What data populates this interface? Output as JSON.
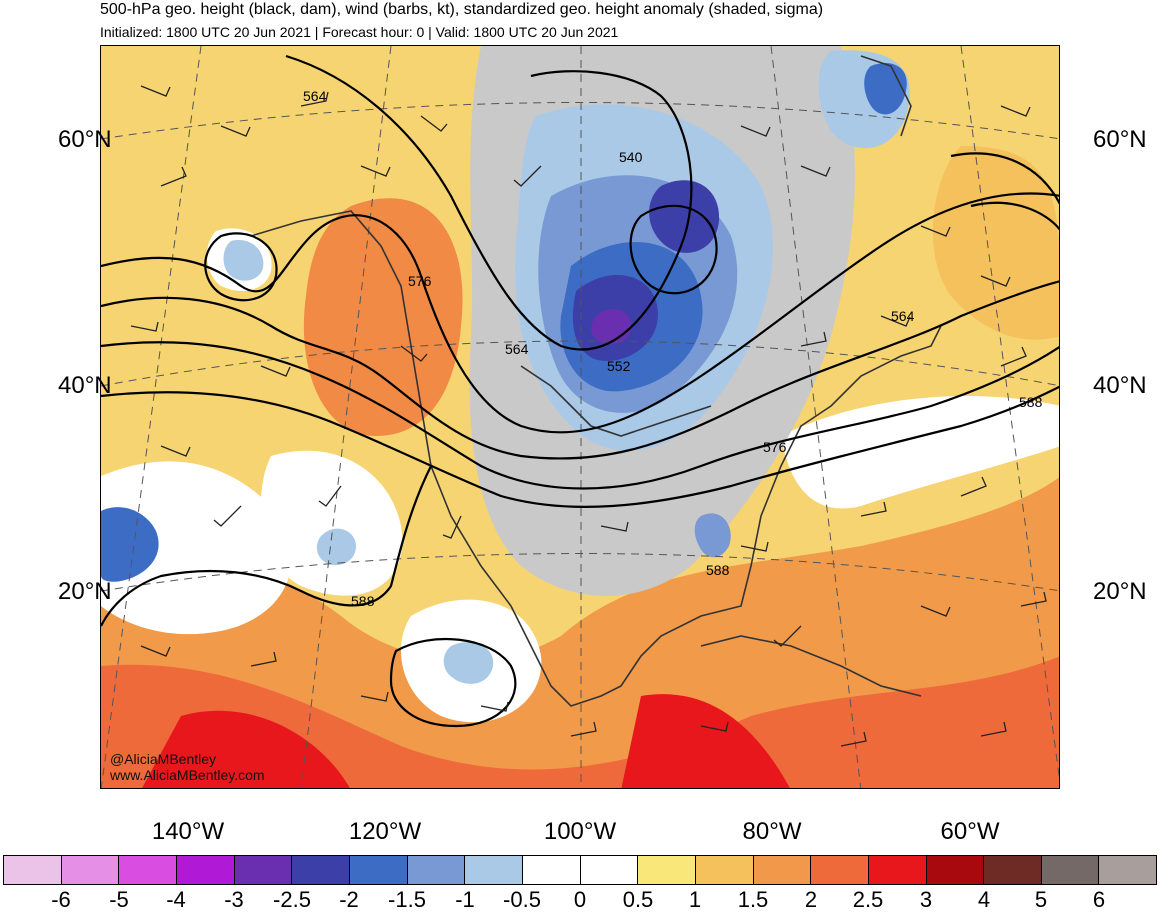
{
  "header": {
    "title": "500-hPa geo. height (black, dam), wind (barbs, kt), standardized geo. height anomaly (shaded, sigma)",
    "subtitle": "Initialized: 1800 UTC 20 Jun 2021 | Forecast hour: 0 | Valid: 1800 UTC 20 Jun 2021"
  },
  "latitude_labels": [
    "60°N",
    "40°N",
    "20°N"
  ],
  "longitude_labels": [
    "140°W",
    "120°W",
    "100°W",
    "80°W",
    "60°W"
  ],
  "contour_labels": [
    "564",
    "540",
    "576",
    "564",
    "552",
    "564",
    "588",
    "576",
    "588",
    "588"
  ],
  "credit": {
    "handle": "@AliciaMBentley",
    "url": "www.AliciaMBentley.com"
  },
  "colorbar": {
    "labels": [
      "-6",
      "-5",
      "-4",
      "-3",
      "-2.5",
      "-2",
      "-1.5",
      "-1",
      "-0.5",
      "0",
      "0.5",
      "1",
      "1.5",
      "2",
      "2.5",
      "3",
      "4",
      "5",
      "6"
    ],
    "colors": [
      "#ebc2e8",
      "#e58fe6",
      "#d94ee0",
      "#b019d6",
      "#6a2fb0",
      "#3c3fa8",
      "#3d6cc4",
      "#7899d4",
      "#a9c9e6",
      "#ffffff",
      "#ffffff",
      "#f9e879",
      "#f4c15d",
      "#f2984a",
      "#ee6a3b",
      "#e8171c",
      "#a8090f",
      "#6e2a24",
      "#756967",
      "#a89e9c"
    ]
  }
}
